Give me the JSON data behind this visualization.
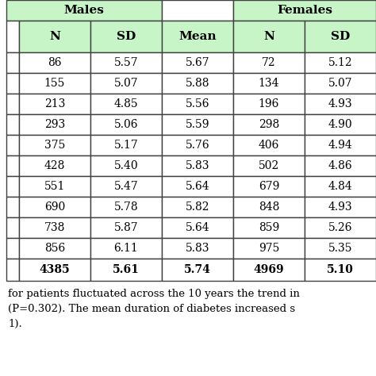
{
  "col_headers": [
    "N",
    "SD",
    "Mean",
    "N",
    "SD"
  ],
  "rows": [
    [
      "86",
      "5.57",
      "5.67",
      "72",
      "5.12"
    ],
    [
      "155",
      "5.07",
      "5.88",
      "134",
      "5.07"
    ],
    [
      "213",
      "4.85",
      "5.56",
      "196",
      "4.93"
    ],
    [
      "293",
      "5.06",
      "5.59",
      "298",
      "4.90"
    ],
    [
      "375",
      "5.17",
      "5.76",
      "406",
      "4.94"
    ],
    [
      "428",
      "5.40",
      "5.83",
      "502",
      "4.86"
    ],
    [
      "551",
      "5.47",
      "5.64",
      "679",
      "4.84"
    ],
    [
      "690",
      "5.78",
      "5.82",
      "848",
      "4.93"
    ],
    [
      "738",
      "5.87",
      "5.64",
      "859",
      "5.26"
    ],
    [
      "856",
      "6.11",
      "5.83",
      "975",
      "5.35"
    ]
  ],
  "total_row": [
    "4385",
    "5.61",
    "5.74",
    "4969",
    "5.10"
  ],
  "footer_lines": [
    "for patients fluctuated across the 10 years the trend in",
    "(P=0.302). The mean duration of diabetes increased s",
    "1)."
  ],
  "header_bg": "#c8f5c8",
  "white_bg": "#ffffff",
  "border_color": "#404040",
  "males_label": "Males",
  "females_label": "Females"
}
